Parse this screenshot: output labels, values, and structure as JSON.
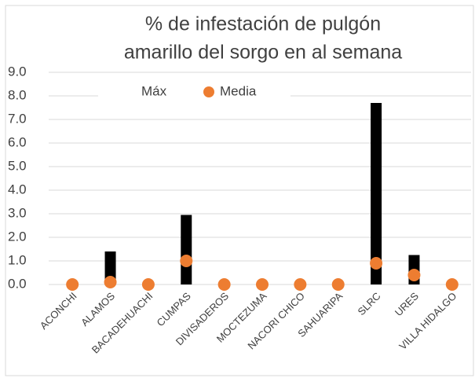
{
  "chart_data": {
    "type": "range",
    "title": [
      "% de infestación de pulgón",
      "amarillo del sorgo en al semana"
    ],
    "categories": [
      "ACONCHI",
      "ALAMOS",
      "BACADEHUACHI",
      "CUMPAS",
      "DIVISADEROS",
      "MOCTEZUMA",
      "NACORI CHICO",
      "SAHUARIPA",
      "SLRC",
      "URES",
      "VILLA HIDALGO"
    ],
    "series": [
      {
        "name": "Máx",
        "color": "#000000",
        "values": [
          0,
          1.4,
          0,
          2.95,
          0,
          0,
          0,
          0,
          7.7,
          1.25,
          0
        ]
      },
      {
        "name": "Media",
        "color": "#ed7d31",
        "values": [
          0,
          0.1,
          0,
          1.0,
          0,
          0,
          0,
          0,
          0.9,
          0.4,
          0
        ]
      }
    ],
    "ylim": [
      0,
      9
    ],
    "yticks": [
      {
        "value": 0,
        "label": "0.0"
      },
      {
        "value": 1,
        "label": "1.0"
      },
      {
        "value": 2,
        "label": "2.0"
      },
      {
        "value": 3,
        "label": "3.0"
      },
      {
        "value": 4,
        "label": "4.0"
      },
      {
        "value": 5,
        "label": "5.0"
      },
      {
        "value": 6,
        "label": "6.0"
      },
      {
        "value": 7,
        "label": "7.0"
      },
      {
        "value": 8,
        "label": "8.0"
      },
      {
        "value": 9,
        "label": "9.0"
      }
    ],
    "grid": true,
    "legend": "top"
  }
}
